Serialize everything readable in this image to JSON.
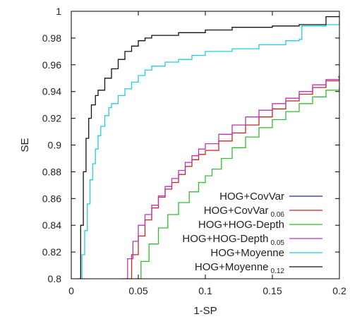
{
  "chart_data": {
    "type": "line",
    "xlabel": "1-SP",
    "ylabel": "SE",
    "xlim": [
      0,
      0.2
    ],
    "ylim": [
      0.8,
      1.0
    ],
    "x_ticks": [
      0,
      0.05,
      0.1,
      0.15,
      0.2
    ],
    "x_tick_labels": [
      "0",
      "0.05",
      "0.1",
      "0.15",
      "0.2"
    ],
    "y_ticks": [
      0.8,
      0.82,
      0.84,
      0.86,
      0.88,
      0.9,
      0.92,
      0.94,
      0.96,
      0.98,
      1.0
    ],
    "y_tick_labels": [
      "0.8",
      "0.82",
      "0.84",
      "0.86",
      "0.88",
      "0.9",
      "0.92",
      "0.94",
      "0.96",
      "0.98",
      "1"
    ],
    "grid": false,
    "legend_position": "bottom-right",
    "series": [
      {
        "name": "HOG+CovVar",
        "name_sub": "",
        "color": "#1f2a9b",
        "points": [
          [
            0.199,
            0.951
          ],
          [
            0.2,
            0.951
          ]
        ]
      },
      {
        "name": "HOG+CovVar",
        "name_sub": "0.06",
        "color": "#cc2222",
        "points": [
          [
            0.04,
            0.8
          ],
          [
            0.045,
            0.818
          ],
          [
            0.05,
            0.832
          ],
          [
            0.055,
            0.844
          ],
          [
            0.06,
            0.853
          ],
          [
            0.065,
            0.861
          ],
          [
            0.07,
            0.867
          ],
          [
            0.075,
            0.872
          ],
          [
            0.08,
            0.878
          ],
          [
            0.085,
            0.884
          ],
          [
            0.09,
            0.889
          ],
          [
            0.095,
            0.893
          ],
          [
            0.1,
            0.896
          ],
          [
            0.11,
            0.903
          ],
          [
            0.12,
            0.909
          ],
          [
            0.13,
            0.915
          ],
          [
            0.14,
            0.921
          ],
          [
            0.15,
            0.927
          ],
          [
            0.16,
            0.933
          ],
          [
            0.17,
            0.938
          ],
          [
            0.18,
            0.943
          ],
          [
            0.19,
            0.948
          ],
          [
            0.2,
            0.951
          ]
        ]
      },
      {
        "name": "HOG+HOG-Depth",
        "name_sub": "",
        "color": "#33bb33",
        "points": [
          [
            0.048,
            0.8
          ],
          [
            0.052,
            0.813
          ],
          [
            0.058,
            0.826
          ],
          [
            0.065,
            0.838
          ],
          [
            0.072,
            0.848
          ],
          [
            0.08,
            0.857
          ],
          [
            0.088,
            0.865
          ],
          [
            0.095,
            0.872
          ],
          [
            0.1,
            0.877
          ],
          [
            0.105,
            0.882
          ],
          [
            0.112,
            0.89
          ],
          [
            0.12,
            0.898
          ],
          [
            0.13,
            0.906
          ],
          [
            0.14,
            0.913
          ],
          [
            0.15,
            0.919
          ],
          [
            0.16,
            0.925
          ],
          [
            0.17,
            0.931
          ],
          [
            0.18,
            0.936
          ],
          [
            0.19,
            0.941
          ],
          [
            0.2,
            0.944
          ]
        ]
      },
      {
        "name": "HOG+HOG-Depth",
        "name_sub": "0.05",
        "color": "#bb33bb",
        "points": [
          [
            0.038,
            0.8
          ],
          [
            0.042,
            0.815
          ],
          [
            0.046,
            0.828
          ],
          [
            0.05,
            0.84
          ],
          [
            0.055,
            0.848
          ],
          [
            0.06,
            0.855
          ],
          [
            0.065,
            0.862
          ],
          [
            0.07,
            0.869
          ],
          [
            0.075,
            0.875
          ],
          [
            0.08,
            0.881
          ],
          [
            0.085,
            0.887
          ],
          [
            0.09,
            0.892
          ],
          [
            0.095,
            0.897
          ],
          [
            0.1,
            0.901
          ],
          [
            0.11,
            0.908
          ],
          [
            0.12,
            0.915
          ],
          [
            0.13,
            0.921
          ],
          [
            0.14,
            0.926
          ],
          [
            0.15,
            0.931
          ],
          [
            0.16,
            0.935
          ],
          [
            0.17,
            0.94
          ],
          [
            0.18,
            0.945
          ],
          [
            0.19,
            0.949
          ],
          [
            0.2,
            0.953
          ]
        ]
      },
      {
        "name": "HOG+Moyenne",
        "name_sub": "",
        "color": "#22ccdd",
        "points": [
          [
            0.006,
            0.8
          ],
          [
            0.008,
            0.818
          ],
          [
            0.01,
            0.836
          ],
          [
            0.012,
            0.856
          ],
          [
            0.014,
            0.874
          ],
          [
            0.016,
            0.886
          ],
          [
            0.018,
            0.897
          ],
          [
            0.02,
            0.907
          ],
          [
            0.022,
            0.914
          ],
          [
            0.025,
            0.922
          ],
          [
            0.028,
            0.928
          ],
          [
            0.03,
            0.931
          ],
          [
            0.035,
            0.937
          ],
          [
            0.04,
            0.942
          ],
          [
            0.045,
            0.947
          ],
          [
            0.05,
            0.952
          ],
          [
            0.055,
            0.956
          ],
          [
            0.06,
            0.959
          ],
          [
            0.07,
            0.962
          ],
          [
            0.08,
            0.964
          ],
          [
            0.09,
            0.967
          ],
          [
            0.1,
            0.97
          ],
          [
            0.12,
            0.972
          ],
          [
            0.14,
            0.975
          ],
          [
            0.16,
            0.978
          ],
          [
            0.17,
            0.979
          ],
          [
            0.172,
            0.989
          ],
          [
            0.19,
            0.99
          ],
          [
            0.2,
            0.993
          ]
        ]
      },
      {
        "name": "HOG+Moyenne",
        "name_sub": "0.12",
        "color": "#111111",
        "points": [
          [
            0.005,
            0.8
          ],
          [
            0.007,
            0.84
          ],
          [
            0.009,
            0.88
          ],
          [
            0.011,
            0.905
          ],
          [
            0.013,
            0.92
          ],
          [
            0.015,
            0.93
          ],
          [
            0.018,
            0.937
          ],
          [
            0.02,
            0.941
          ],
          [
            0.025,
            0.95
          ],
          [
            0.03,
            0.957
          ],
          [
            0.035,
            0.964
          ],
          [
            0.04,
            0.97
          ],
          [
            0.045,
            0.974
          ],
          [
            0.05,
            0.978
          ],
          [
            0.055,
            0.98
          ],
          [
            0.06,
            0.982
          ],
          [
            0.08,
            0.984
          ],
          [
            0.1,
            0.986
          ],
          [
            0.12,
            0.988
          ],
          [
            0.15,
            0.989
          ],
          [
            0.17,
            0.99
          ],
          [
            0.19,
            0.996
          ],
          [
            0.2,
            0.997
          ]
        ]
      }
    ]
  }
}
